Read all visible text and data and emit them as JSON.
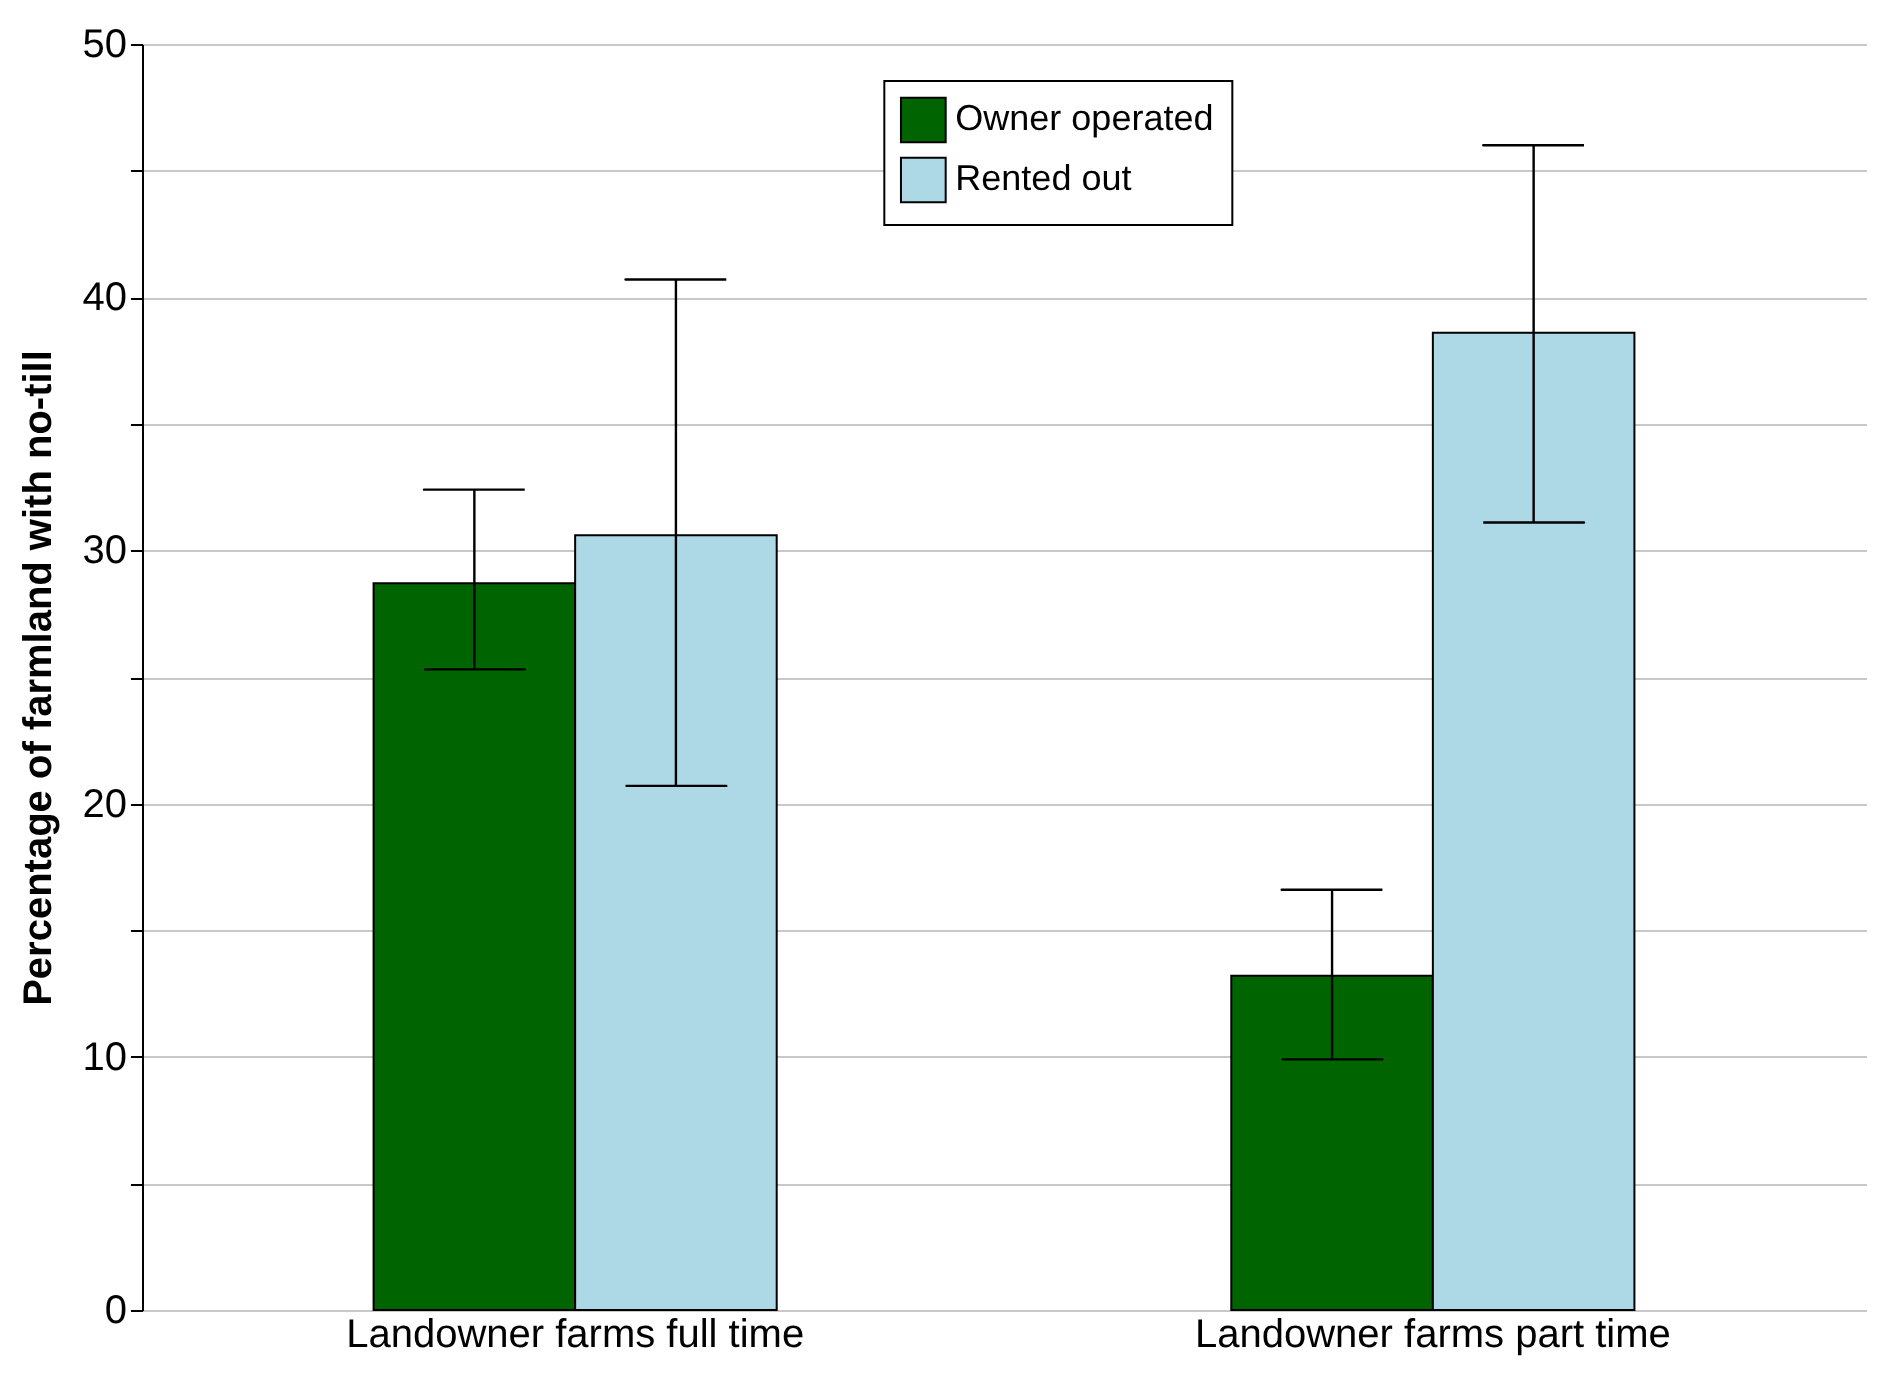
{
  "chart_data": {
    "type": "bar",
    "ylabel": "Percentage of farmland with no-till",
    "categories": [
      "Landowner farms full time",
      "Landowner farms part time"
    ],
    "series": [
      {
        "name": "Owner operated",
        "color": "#006400",
        "values": [
          28.7,
          13.2
        ],
        "errors": [
          [
            25.3,
            32.4
          ],
          [
            9.9,
            16.6
          ]
        ]
      },
      {
        "name": "Rented out",
        "color": "#add8e6",
        "values": [
          30.6,
          38.6
        ],
        "errors": [
          [
            20.7,
            40.7
          ],
          [
            31.1,
            46.0
          ]
        ]
      }
    ],
    "ylim": [
      0,
      50
    ],
    "yticks": [
      0,
      {
        "value": 5,
        "label": null
      },
      10,
      {
        "value": 15,
        "label": null
      },
      20,
      {
        "value": 25,
        "label": null
      },
      30,
      {
        "value": 35,
        "label": null
      },
      40,
      {
        "value": 45,
        "label": null
      },
      50
    ],
    "grid": "y",
    "legend": "top"
  }
}
